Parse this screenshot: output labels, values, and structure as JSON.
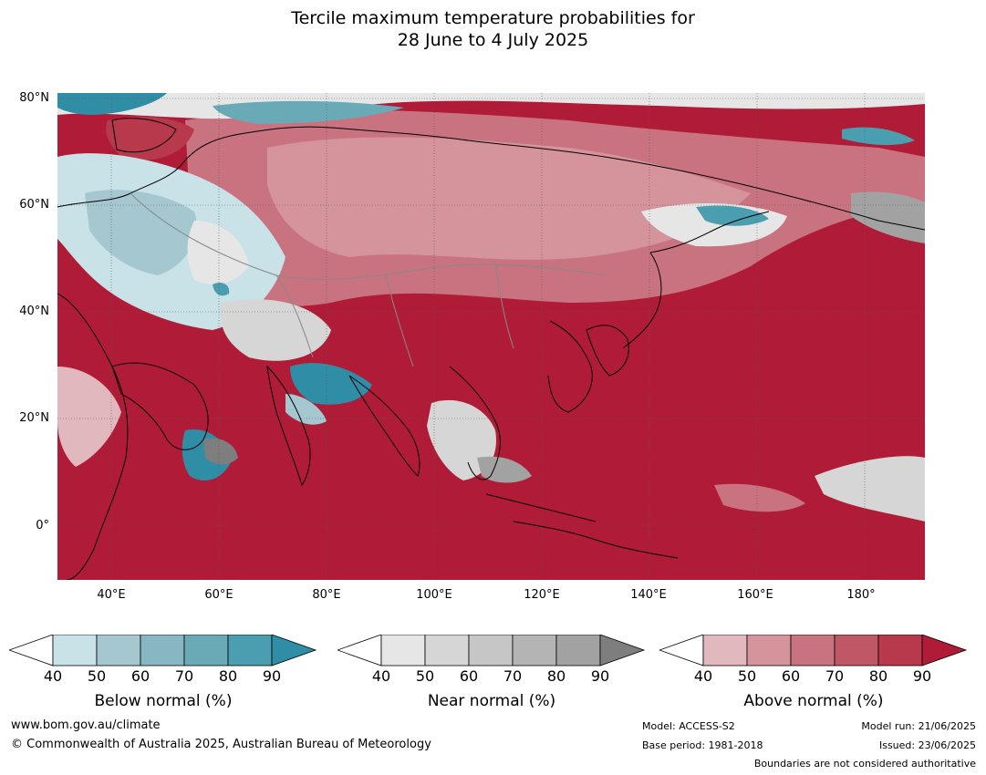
{
  "title_line1": "Tercile maximum temperature probabilities for",
  "title_line2": "28 June to 4 July 2025",
  "map": {
    "lat_labels": [
      "80°N",
      "60°N",
      "40°N",
      "20°N",
      "0°"
    ],
    "lon_labels": [
      "40°E",
      "60°E",
      "80°E",
      "100°E",
      "120°E",
      "140°E",
      "160°E",
      "180°"
    ],
    "lat_range": [
      -10,
      80
    ],
    "lon_range": [
      30,
      191
    ],
    "ocean_dominant_category": "Above normal (90%+)"
  },
  "legends": [
    {
      "id": "below",
      "title": "Below normal (%)",
      "ticks": [
        "40",
        "50",
        "60",
        "70",
        "80",
        "90"
      ],
      "colors": [
        "#ffffff",
        "#c8e2e8",
        "#a5c8d0",
        "#88b6c2",
        "#6aa9b6",
        "#4b9db0",
        "#2f8da5"
      ]
    },
    {
      "id": "near",
      "title": "Near normal (%)",
      "ticks": [
        "40",
        "50",
        "60",
        "70",
        "80",
        "90"
      ],
      "colors": [
        "#ffffff",
        "#e6e6e6",
        "#d6d6d6",
        "#c6c6c6",
        "#b4b4b4",
        "#a2a2a2",
        "#7e7e7e"
      ]
    },
    {
      "id": "above",
      "title": "Above normal (%)",
      "ticks": [
        "40",
        "50",
        "60",
        "70",
        "80",
        "90"
      ],
      "colors": [
        "#ffffff",
        "#e2b8bf",
        "#d5939c",
        "#c97380",
        "#bf5766",
        "#b8384c",
        "#b01c37"
      ]
    }
  ],
  "footer": {
    "website": "www.bom.gov.au/climate",
    "copyright": "© Commonwealth of Australia 2025, Australian Bureau of Meteorology",
    "model": "Model: ACCESS-S2",
    "base_period": "Base period: 1981-2018",
    "model_run": "Model run: 21/06/2025",
    "issued": "Issued: 23/06/2025",
    "disclaimer": "Boundaries are not considered authoritative"
  }
}
